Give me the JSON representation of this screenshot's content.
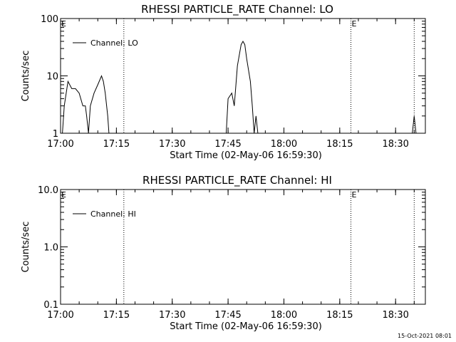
{
  "footer": {
    "timestamp": "15-Oct-2021 08:01"
  },
  "chart_data": [
    {
      "type": "line",
      "title": "RHESSI PARTICLE_RATE Channel: LO",
      "xlabel": "Start Time (02-May-06 16:59:30)",
      "ylabel": "Counts/sec",
      "yscale": "log",
      "ylim": [
        1,
        100
      ],
      "xlim": [
        "17:00",
        "18:38"
      ],
      "xtick_labels": [
        "17:00",
        "17:15",
        "17:30",
        "17:45",
        "18:00",
        "18:15",
        "18:30"
      ],
      "ytick_labels": [
        "1",
        "10",
        "100"
      ],
      "legend": {
        "entry": "Channel: LO",
        "placement": "top-left"
      },
      "marker_lines": [
        {
          "time": "17:17",
          "label": ""
        },
        {
          "time": "18:18",
          "label": "E"
        },
        {
          "time": "18:35",
          "label": ""
        }
      ],
      "start_marker_label": "E",
      "series": [
        {
          "name": "Channel: LO",
          "points": [
            [
              "17:00:30",
              1
            ],
            [
              "17:01:00",
              3
            ],
            [
              "17:02:00",
              8
            ],
            [
              "17:03:00",
              6
            ],
            [
              "17:04:00",
              6
            ],
            [
              "17:05:00",
              5
            ],
            [
              "17:06:00",
              3
            ],
            [
              "17:06:40",
              3
            ],
            [
              "17:07:00",
              2
            ],
            [
              "17:07:30",
              1
            ],
            [
              "17:08:00",
              3
            ],
            [
              "17:09:00",
              5
            ],
            [
              "17:10:00",
              7
            ],
            [
              "17:11:00",
              10
            ],
            [
              "17:11:30",
              8
            ],
            [
              "17:12:00",
              5
            ],
            [
              "17:12:40",
              2
            ],
            [
              "17:13:00",
              1
            ],
            [
              "17:44:30",
              1
            ],
            [
              "17:45:00",
              4
            ],
            [
              "17:46:00",
              5
            ],
            [
              "17:46:40",
              3
            ],
            [
              "17:47:30",
              15
            ],
            [
              "17:48:30",
              35
            ],
            [
              "17:49:00",
              40
            ],
            [
              "17:49:30",
              35
            ],
            [
              "17:50:00",
              20
            ],
            [
              "17:51:00",
              8
            ],
            [
              "17:51:30",
              3
            ],
            [
              "17:52:00",
              1
            ],
            [
              "17:52:30",
              2
            ],
            [
              "17:53:00",
              1
            ],
            [
              "18:34:30",
              1
            ],
            [
              "18:35:00",
              2
            ],
            [
              "18:35:30",
              1
            ]
          ]
        }
      ]
    },
    {
      "type": "line",
      "title": "RHESSI PARTICLE_RATE Channel: HI",
      "xlabel": "Start Time (02-May-06 16:59:30)",
      "ylabel": "Counts/sec",
      "yscale": "log",
      "ylim": [
        0.1,
        10.0
      ],
      "xlim": [
        "17:00",
        "18:38"
      ],
      "xtick_labels": [
        "17:00",
        "17:15",
        "17:30",
        "17:45",
        "18:00",
        "18:15",
        "18:30"
      ],
      "ytick_labels": [
        "0.1",
        "1.0",
        "10.0"
      ],
      "legend": {
        "entry": "Channel: HI",
        "placement": "top-left"
      },
      "marker_lines": [
        {
          "time": "17:17",
          "label": ""
        },
        {
          "time": "18:18",
          "label": "E"
        },
        {
          "time": "18:35",
          "label": ""
        }
      ],
      "start_marker_label": "E",
      "series": [
        {
          "name": "Channel: HI",
          "points": []
        }
      ]
    }
  ]
}
